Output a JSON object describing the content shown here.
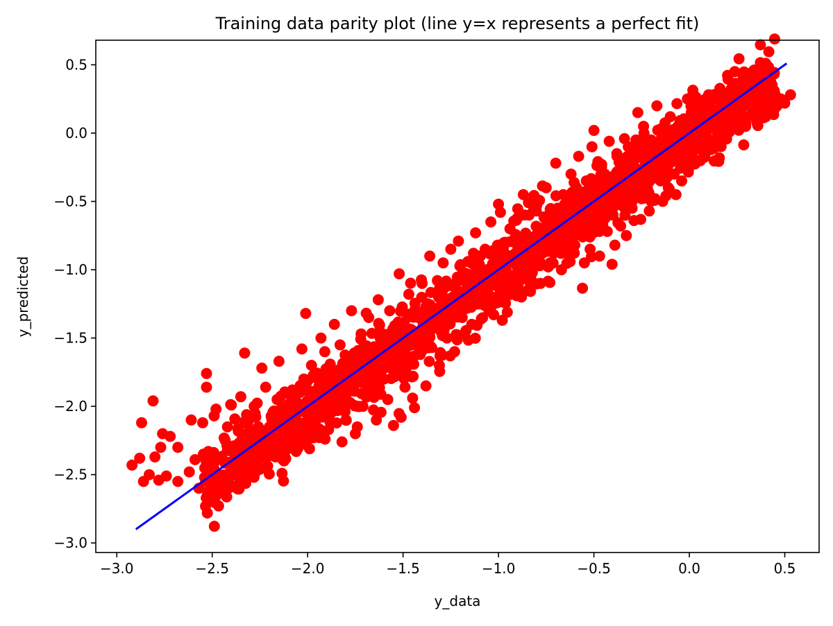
{
  "chart_data": {
    "type": "scatter",
    "title": "Training data parity plot (line y=x represents a perfect fit)",
    "xlabel": "y_data",
    "ylabel": "y_predicted",
    "xlim": [
      -3.11,
      0.68
    ],
    "ylim": [
      -3.07,
      0.68
    ],
    "xticks": [
      -3.0,
      -2.5,
      -2.0,
      -1.5,
      -1.0,
      -0.5,
      0.0,
      0.5
    ],
    "xtick_labels": [
      "−3.0",
      "−2.5",
      "−2.0",
      "−1.5",
      "−1.0",
      "−0.5",
      "0.0",
      "0.5"
    ],
    "yticks": [
      0.5,
      0.0,
      -0.5,
      -1.0,
      -1.5,
      -2.0,
      -2.5,
      -3.0
    ],
    "ytick_labels": [
      "0.5",
      "0.0",
      "−0.5",
      "−1.0",
      "−1.5",
      "−2.0",
      "−2.5",
      "−3.0"
    ],
    "grid": false,
    "series": [
      {
        "kind": "points",
        "color": "#ff0000",
        "marker": "circle",
        "points": [
          [
            -2.92,
            -2.43
          ],
          [
            -2.88,
            -2.38
          ],
          [
            -2.87,
            -2.12
          ],
          [
            -2.86,
            -2.55
          ],
          [
            -2.83,
            -2.5
          ],
          [
            -2.81,
            -1.96
          ],
          [
            -2.8,
            -2.37
          ],
          [
            -2.78,
            -2.54
          ],
          [
            -2.77,
            -2.3
          ],
          [
            -2.76,
            -2.2
          ],
          [
            -2.74,
            -2.51
          ],
          [
            -2.72,
            -2.22
          ],
          [
            -2.68,
            -2.3
          ],
          [
            -2.68,
            -2.55
          ],
          [
            -2.62,
            -2.48
          ],
          [
            -2.61,
            -2.1
          ],
          [
            -2.59,
            -2.39
          ],
          [
            -2.57,
            -2.6
          ],
          [
            -2.55,
            -2.12
          ],
          [
            -2.54,
            -2.52
          ],
          [
            -2.53,
            -1.76
          ],
          [
            -2.53,
            -1.86
          ],
          [
            -2.52,
            -2.33
          ],
          [
            -2.5,
            -2.58
          ],
          [
            -2.49,
            -2.07
          ],
          [
            -2.48,
            -2.02
          ],
          [
            -2.47,
            -2.5
          ],
          [
            -2.45,
            -2.6
          ],
          [
            -2.44,
            -2.4
          ],
          [
            -2.42,
            -2.15
          ],
          [
            -2.4,
            -1.99
          ],
          [
            -2.38,
            -2.48
          ],
          [
            -2.36,
            -2.57
          ],
          [
            -2.36,
            -2.27
          ],
          [
            -2.35,
            -1.93
          ],
          [
            -2.33,
            -1.61
          ],
          [
            -2.32,
            -2.1
          ],
          [
            -2.3,
            -2.33
          ],
          [
            -2.28,
            -2.0
          ],
          [
            -2.27,
            -2.38
          ],
          [
            -2.25,
            -2.46
          ],
          [
            -2.24,
            -1.72
          ],
          [
            -2.22,
            -1.86
          ],
          [
            -2.2,
            -2.15
          ],
          [
            -2.18,
            -2.25
          ],
          [
            -2.16,
            -1.95
          ],
          [
            -2.15,
            -1.67
          ],
          [
            -2.13,
            -2.0
          ],
          [
            -2.12,
            -2.37
          ],
          [
            -2.1,
            -2.1
          ],
          [
            -2.08,
            -1.88
          ],
          [
            -2.06,
            -2.33
          ],
          [
            -2.04,
            -2.03
          ],
          [
            -2.03,
            -1.58
          ],
          [
            -2.02,
            -1.8
          ],
          [
            -2.01,
            -1.32
          ],
          [
            -1.99,
            -2.31
          ],
          [
            -1.98,
            -1.7
          ],
          [
            -1.97,
            -1.98
          ],
          [
            -1.96,
            -2.15
          ],
          [
            -1.94,
            -1.85
          ],
          [
            -1.93,
            -1.5
          ],
          [
            -1.91,
            -1.6
          ],
          [
            -1.9,
            -2.0
          ],
          [
            -1.89,
            -2.17
          ],
          [
            -1.87,
            -1.75
          ],
          [
            -1.86,
            -1.4
          ],
          [
            -1.85,
            -1.9
          ],
          [
            -1.83,
            -1.55
          ],
          [
            -1.82,
            -2.26
          ],
          [
            -1.8,
            -2.1
          ],
          [
            -1.79,
            -1.7
          ],
          [
            -1.77,
            -1.3
          ],
          [
            -1.76,
            -1.85
          ],
          [
            -1.75,
            -2.2
          ],
          [
            -1.74,
            -2.15
          ],
          [
            -1.72,
            -1.47
          ],
          [
            -1.71,
            -2.0
          ],
          [
            -1.7,
            -1.6
          ],
          [
            -1.68,
            -1.35
          ],
          [
            -1.67,
            -1.75
          ],
          [
            -1.66,
            -1.92
          ],
          [
            -1.64,
            -2.1
          ],
          [
            -1.63,
            -1.22
          ],
          [
            -1.62,
            -1.55
          ],
          [
            -1.6,
            -1.8
          ],
          [
            -1.58,
            -1.95
          ],
          [
            -1.57,
            -1.3
          ],
          [
            -1.56,
            -1.65
          ],
          [
            -1.55,
            -2.14
          ],
          [
            -1.54,
            -1.45
          ],
          [
            -1.52,
            -1.03
          ],
          [
            -1.51,
            -2.08
          ],
          [
            -1.5,
            -1.72
          ],
          [
            -1.49,
            -1.86
          ],
          [
            -1.47,
            -1.18
          ],
          [
            -1.46,
            -1.5
          ],
          [
            -1.45,
            -1.94
          ],
          [
            -1.44,
            -2.01
          ],
          [
            -1.42,
            -1.35
          ],
          [
            -1.41,
            -1.62
          ],
          [
            -1.4,
            -1.1
          ],
          [
            -1.38,
            -1.85
          ],
          [
            -1.37,
            -1.25
          ],
          [
            -1.36,
            -0.9
          ],
          [
            -1.35,
            -1.57
          ],
          [
            -1.33,
            -1.4
          ],
          [
            -1.32,
            -1.08
          ],
          [
            -1.31,
            -1.7
          ],
          [
            -1.29,
            -0.95
          ],
          [
            -1.28,
            -1.3
          ],
          [
            -1.27,
            -1.5
          ],
          [
            -1.25,
            -0.85
          ],
          [
            -1.24,
            -1.2
          ],
          [
            -1.23,
            -1.6
          ],
          [
            -1.21,
            -0.79
          ],
          [
            -1.2,
            -1.05
          ],
          [
            -1.19,
            -1.35
          ],
          [
            -1.18,
            -1.47
          ],
          [
            -1.16,
            -0.94
          ],
          [
            -1.15,
            -1.15
          ],
          [
            -1.14,
            -1.4
          ],
          [
            -1.12,
            -0.73
          ],
          [
            -1.11,
            -1.0
          ],
          [
            -1.1,
            -1.25
          ],
          [
            -1.09,
            -1.36
          ],
          [
            -1.07,
            -0.85
          ],
          [
            -1.06,
            -1.1
          ],
          [
            -1.05,
            -1.3
          ],
          [
            -1.04,
            -0.65
          ],
          [
            -1.02,
            -0.95
          ],
          [
            -1.01,
            -1.2
          ],
          [
            -1.0,
            -0.52
          ],
          [
            -0.99,
            -0.58
          ],
          [
            -0.98,
            -1.37
          ],
          [
            -0.97,
            -0.8
          ],
          [
            -0.96,
            -1.0
          ],
          [
            -0.95,
            -1.13
          ],
          [
            -0.94,
            -0.7
          ],
          [
            -0.93,
            -0.9
          ],
          [
            -0.91,
            -1.05
          ],
          [
            -0.9,
            -0.62
          ],
          [
            -0.89,
            -0.85
          ],
          [
            -0.88,
            -1.2
          ],
          [
            -0.87,
            -0.45
          ],
          [
            -0.86,
            -0.78
          ],
          [
            -0.85,
            -0.98
          ],
          [
            -0.84,
            -0.6
          ],
          [
            -0.83,
            -1.07
          ],
          [
            -0.81,
            -0.9
          ],
          [
            -0.8,
            -0.53
          ],
          [
            -0.79,
            -0.72
          ],
          [
            -0.78,
            -1.1
          ],
          [
            -0.77,
            -0.85
          ],
          [
            -0.76,
            -0.62
          ],
          [
            -0.75,
            -0.4
          ],
          [
            -0.73,
            -0.95
          ],
          [
            -0.72,
            -0.68
          ],
          [
            -0.71,
            -0.88
          ],
          [
            -0.7,
            -0.22
          ],
          [
            -0.69,
            -0.55
          ],
          [
            -0.68,
            -0.8
          ],
          [
            -0.67,
            -1.0
          ],
          [
            -0.66,
            -0.45
          ],
          [
            -0.64,
            -0.7
          ],
          [
            -0.63,
            -0.9
          ],
          [
            -0.62,
            -0.3
          ],
          [
            -0.61,
            -0.55
          ],
          [
            -0.6,
            -0.82
          ],
          [
            -0.58,
            -0.17
          ],
          [
            -0.57,
            -0.5
          ],
          [
            -0.56,
            -0.72
          ],
          [
            -0.55,
            -0.95
          ],
          [
            -0.54,
            -0.35
          ],
          [
            -0.53,
            -0.6
          ],
          [
            -0.52,
            -0.85
          ],
          [
            -0.51,
            -0.1
          ],
          [
            -0.5,
            0.02
          ],
          [
            -0.49,
            -0.42
          ],
          [
            -0.48,
            -0.65
          ],
          [
            -0.47,
            -0.9
          ],
          [
            -0.46,
            -0.25
          ],
          [
            -0.44,
            -0.55
          ],
          [
            -0.43,
            -0.72
          ],
          [
            -0.42,
            -0.06
          ],
          [
            -0.41,
            -0.35
          ],
          [
            -0.4,
            -0.6
          ],
          [
            -0.39,
            -0.82
          ],
          [
            -0.38,
            -0.15
          ],
          [
            -0.37,
            -0.4
          ],
          [
            -0.36,
            -0.68
          ],
          [
            -0.35,
            -0.25
          ],
          [
            -0.34,
            -0.5
          ],
          [
            -0.33,
            -0.75
          ],
          [
            -0.32,
            -0.1
          ],
          [
            -0.31,
            -0.35
          ],
          [
            -0.3,
            -0.55
          ],
          [
            -0.29,
            -0.64
          ],
          [
            -0.28,
            -0.05
          ],
          [
            -0.27,
            0.15
          ],
          [
            -0.26,
            -0.3
          ],
          [
            -0.25,
            -0.48
          ],
          [
            -0.24,
            0.05
          ],
          [
            -0.23,
            -0.15
          ],
          [
            -0.22,
            -0.4
          ],
          [
            -0.21,
            -0.57
          ],
          [
            -0.2,
            -0.05
          ],
          [
            -0.19,
            -0.25
          ],
          [
            -0.18,
            -0.48
          ],
          [
            -0.17,
            0.2
          ],
          [
            -0.16,
            -0.12
          ],
          [
            -0.15,
            -0.35
          ],
          [
            -0.14,
            -0.5
          ],
          [
            -0.13,
            -0.02
          ],
          [
            -0.12,
            -0.22
          ],
          [
            -0.11,
            -0.4
          ],
          [
            -0.1,
            0.12
          ],
          [
            -0.09,
            -0.1
          ],
          [
            -0.08,
            -0.3
          ],
          [
            -0.07,
            -0.45
          ],
          [
            -0.06,
            0.05
          ],
          [
            -0.05,
            -0.18
          ],
          [
            -0.04,
            -0.35
          ],
          [
            -0.03,
            0.1
          ],
          [
            -0.02,
            -0.05
          ],
          [
            -0.01,
            0.25
          ],
          [
            0.0,
            -0.25
          ],
          [
            0.01,
            0.15
          ],
          [
            0.02,
            -0.1
          ],
          [
            0.03,
            0.0
          ],
          [
            0.04,
            -0.2
          ],
          [
            0.05,
            0.12
          ],
          [
            0.06,
            -0.05
          ],
          [
            0.07,
            0.18
          ],
          [
            0.08,
            -0.15
          ],
          [
            0.09,
            0.05
          ],
          [
            0.1,
            0.2
          ],
          [
            0.11,
            -0.05
          ],
          [
            0.12,
            0.1
          ],
          [
            0.13,
            0.25
          ],
          [
            0.14,
            0.02
          ],
          [
            0.15,
            0.15
          ],
          [
            0.16,
            -0.05
          ],
          [
            0.17,
            0.28
          ],
          [
            0.18,
            0.08
          ],
          [
            0.19,
            0.18
          ],
          [
            0.2,
            0.0
          ],
          [
            0.21,
            0.22
          ],
          [
            0.22,
            0.1
          ],
          [
            0.23,
            0.28
          ],
          [
            0.24,
            0.05
          ],
          [
            0.25,
            0.15
          ],
          [
            0.26,
            0.25
          ],
          [
            0.27,
            0.08
          ],
          [
            0.28,
            0.2
          ],
          [
            0.29,
            0.3
          ],
          [
            0.3,
            0.12
          ],
          [
            0.31,
            0.22
          ],
          [
            0.32,
            0.28
          ],
          [
            0.33,
            0.15
          ],
          [
            0.34,
            0.25
          ],
          [
            0.35,
            0.1
          ],
          [
            0.36,
            0.2
          ],
          [
            0.37,
            0.28
          ],
          [
            0.38,
            0.18
          ],
          [
            0.39,
            0.25
          ],
          [
            0.4,
            0.12
          ],
          [
            0.41,
            0.22
          ],
          [
            0.42,
            0.3
          ],
          [
            0.43,
            0.2
          ],
          [
            0.44,
            0.26
          ],
          [
            0.45,
            0.28
          ],
          [
            0.46,
            0.2
          ],
          [
            0.48,
            0.25
          ],
          [
            0.5,
            0.22
          ],
          [
            0.53,
            0.28
          ]
        ],
        "band": {
          "count": 1600,
          "x_range": [
            -2.55,
            0.45
          ],
          "center_offset": -0.03,
          "spread": 0.13
        }
      },
      {
        "kind": "line",
        "color": "#0000ff",
        "points": [
          [
            -2.9,
            -2.9
          ],
          [
            0.51,
            0.51
          ]
        ]
      }
    ]
  }
}
